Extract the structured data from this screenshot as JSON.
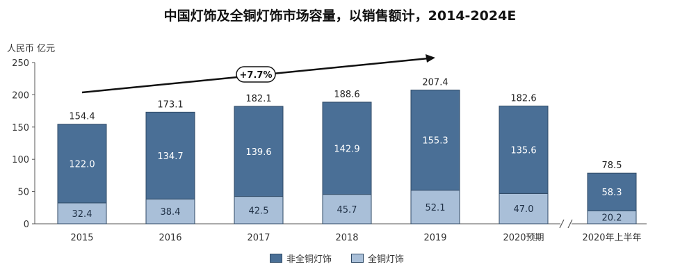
{
  "chart_data": {
    "type": "bar",
    "stacked": true,
    "title": "中国灯饰及全铜灯饰市场容量，以销售额计，2014-2024E",
    "ylabel": "人民币 亿元",
    "xlabel": "",
    "ylim": [
      0,
      250
    ],
    "yticks": [
      "0",
      "50",
      "100",
      "150",
      "200",
      "250"
    ],
    "categories": [
      "2015",
      "2016",
      "2017",
      "2018",
      "2019",
      "2020预期",
      "2020年上半年"
    ],
    "series": [
      {
        "name": "全铜灯饰",
        "values": [
          32.4,
          38.4,
          42.5,
          45.7,
          52.1,
          47.0,
          20.2
        ],
        "labels": [
          "32.4",
          "38.4",
          "42.5",
          "45.7",
          "52.1",
          "47.0",
          "20.2"
        ]
      },
      {
        "name": "非全铜灯饰",
        "values": [
          122.0,
          134.7,
          139.6,
          142.9,
          155.3,
          135.6,
          58.3
        ],
        "labels": [
          "122.0",
          "134.7",
          "139.6",
          "142.9",
          "155.3",
          "135.6",
          "58.3"
        ]
      }
    ],
    "totals": [
      154.4,
      173.1,
      182.1,
      188.6,
      207.4,
      182.6,
      78.5
    ],
    "total_labels": [
      "154.4",
      "173.1",
      "182.1",
      "188.6",
      "207.4",
      "182.6",
      "78.5"
    ],
    "annotation": "+7.7%",
    "legend_order": [
      "非全铜灯饰",
      "全铜灯饰"
    ],
    "legend_placement": "bottom-center",
    "grid": false
  },
  "colors": {
    "dark_bar": "#4a6f96",
    "light_bar": "#a9bfd8",
    "bar_border": "#2f4a66"
  }
}
